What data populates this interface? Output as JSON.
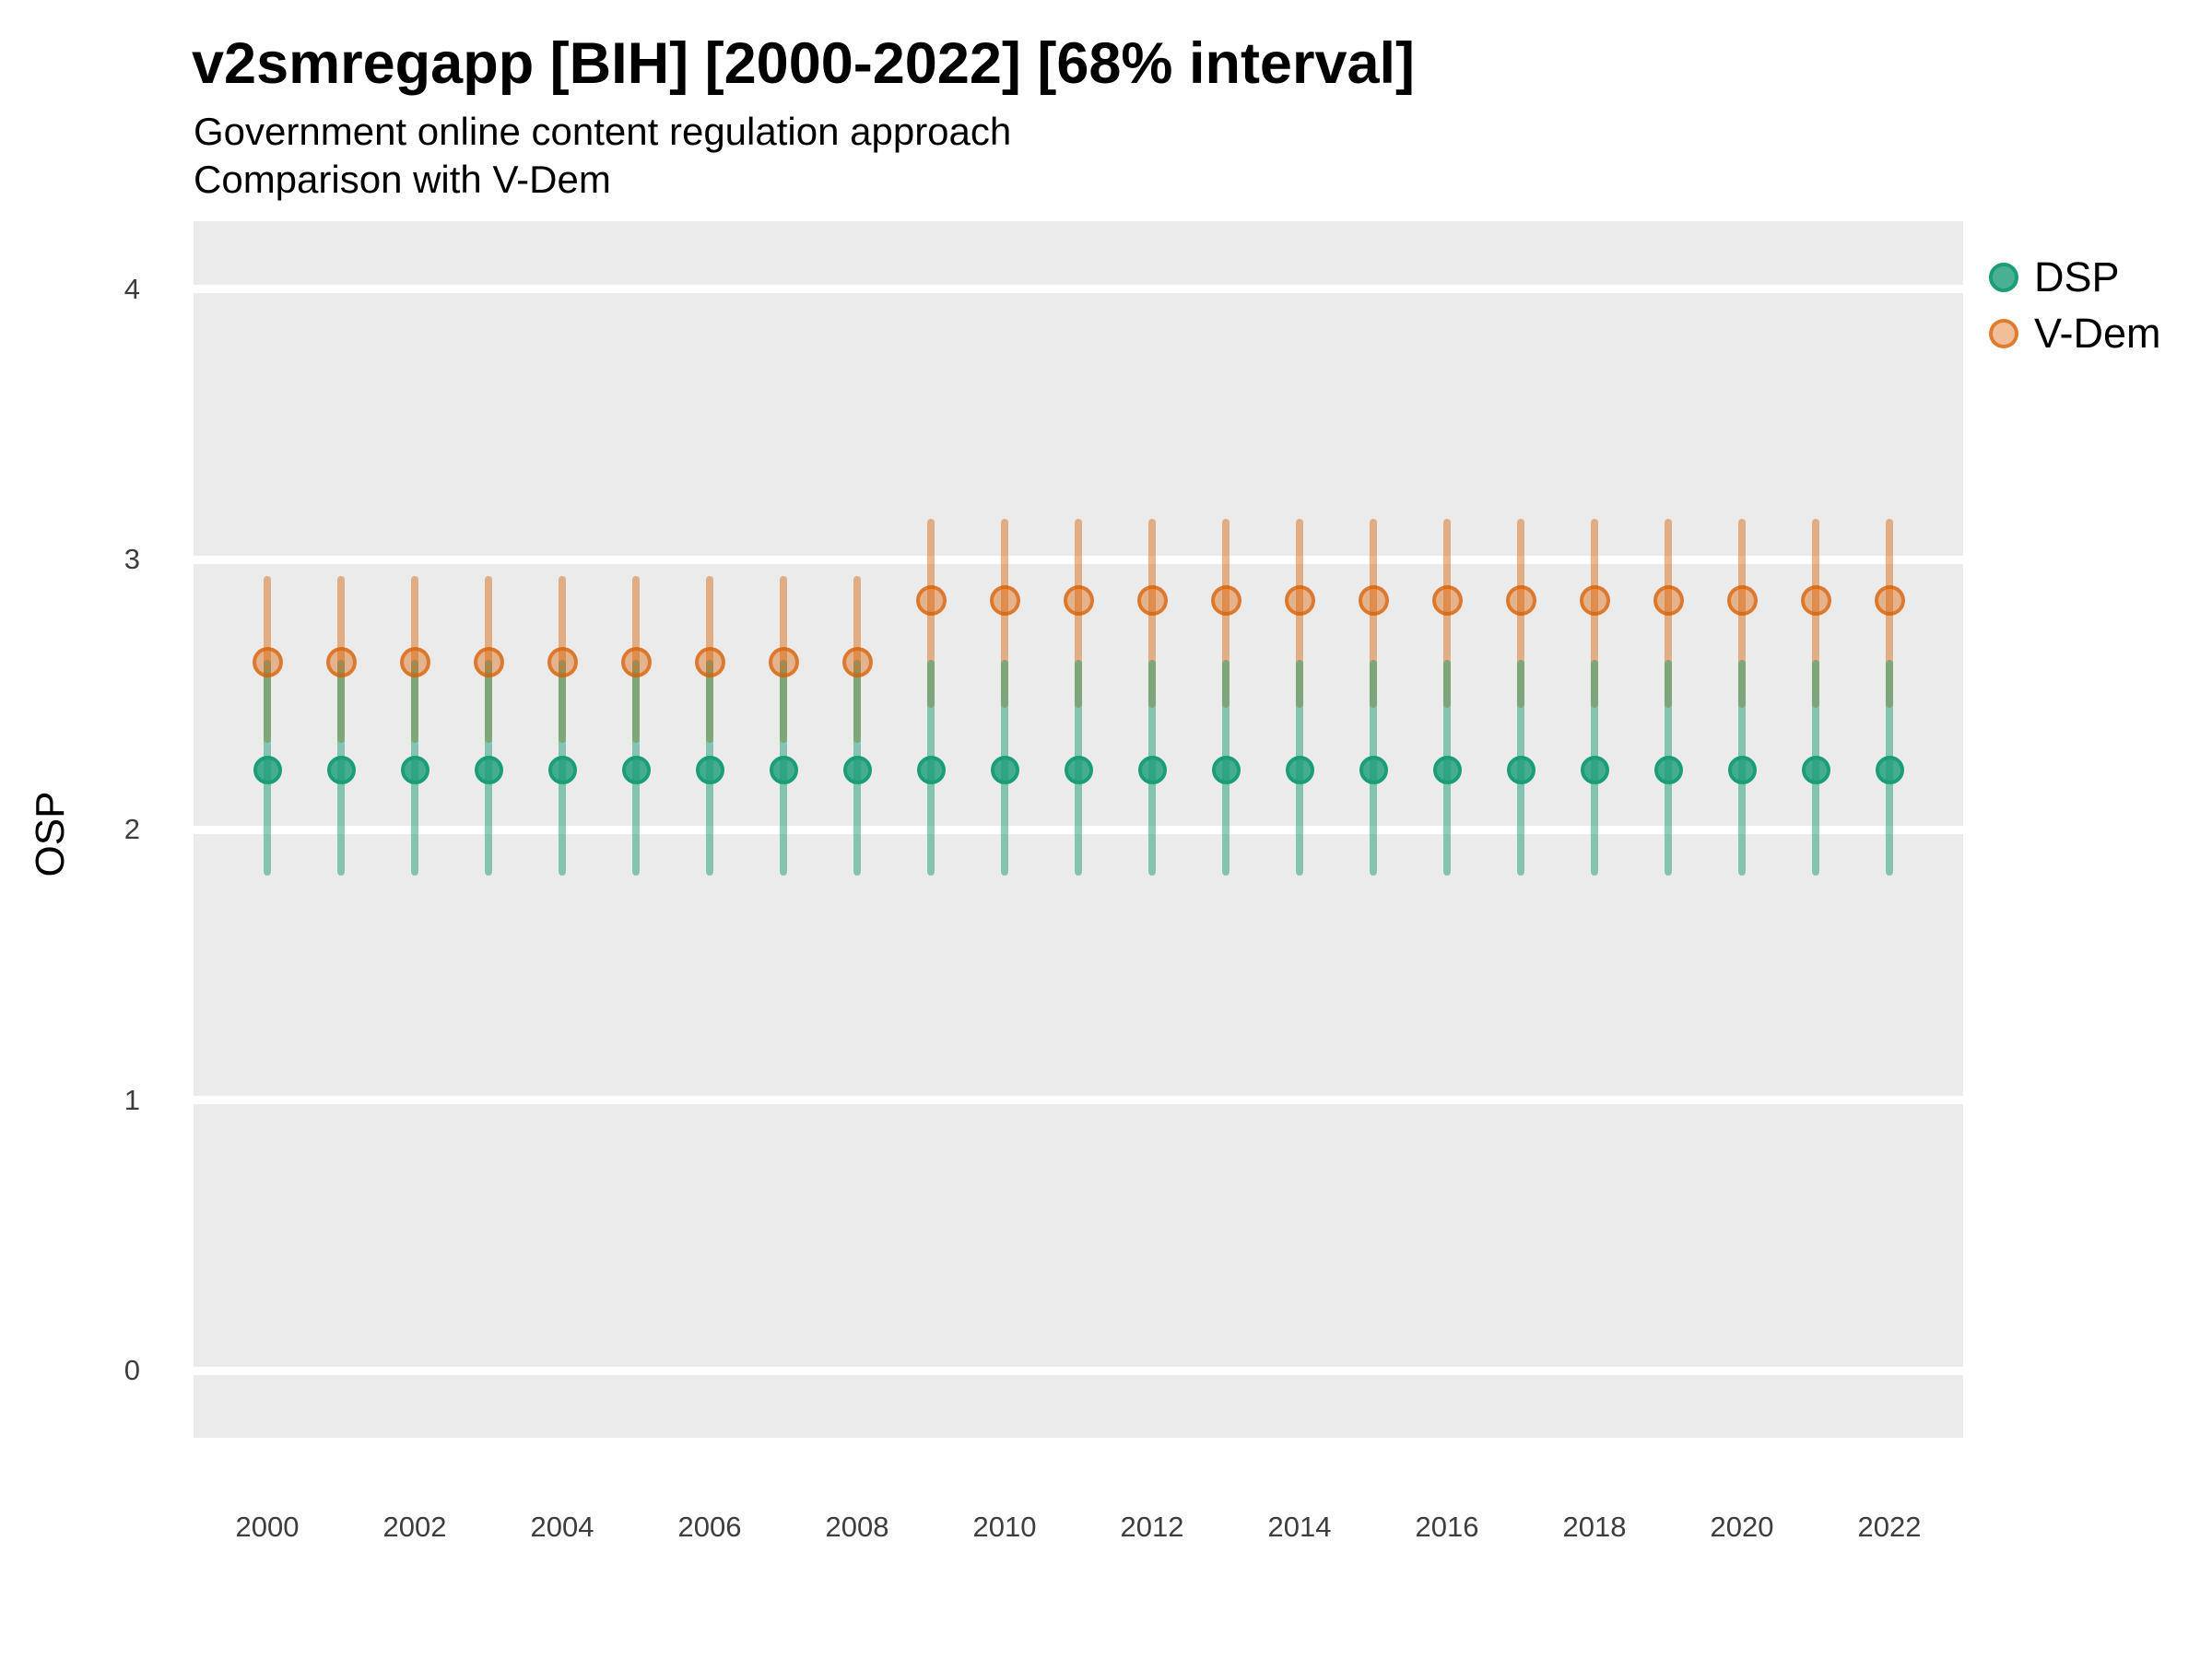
{
  "title": "v2smregapp [BIH] [2000-2022] [68% interval]",
  "subtitle_line1": "Government online content regulation approach",
  "subtitle_line2": "Comparison with V-Dem",
  "axes": {
    "y_label": "OSP",
    "y_ticks": [
      4,
      3,
      2,
      1,
      0
    ],
    "x_ticks": [
      2000,
      2002,
      2004,
      2006,
      2008,
      2010,
      2012,
      2014,
      2016,
      2018,
      2020,
      2022
    ]
  },
  "legend": {
    "items": [
      {
        "label": "DSP",
        "color": "#1B9E77"
      },
      {
        "label": "V-Dem",
        "color": "#D95F02"
      }
    ]
  },
  "colors": {
    "panel_background": "#EBEBEB",
    "gridline": "#FFFFFF",
    "dsp": "#1B9E77",
    "vdem": "#D95F02"
  },
  "chart_data": {
    "type": "scatter",
    "title": "v2smregapp [BIH] [2000-2022] [68% interval]",
    "subtitle": [
      "Government online content regulation approach",
      "Comparison with V-Dem"
    ],
    "xlabel": "",
    "ylabel": "OSP",
    "ylim": [
      0,
      4
    ],
    "interval": "68%",
    "grid": "major-horizontal-only",
    "legend_position": "right-top",
    "x": [
      2000,
      2001,
      2002,
      2003,
      2004,
      2005,
      2006,
      2007,
      2008,
      2009,
      2010,
      2011,
      2012,
      2013,
      2014,
      2015,
      2016,
      2017,
      2018,
      2019,
      2020,
      2021,
      2022
    ],
    "series": [
      {
        "name": "DSP",
        "color": "#1B9E77",
        "values": [
          2.22,
          2.22,
          2.22,
          2.22,
          2.22,
          2.22,
          2.22,
          2.22,
          2.22,
          2.22,
          2.22,
          2.22,
          2.22,
          2.22,
          2.22,
          2.22,
          2.22,
          2.22,
          2.22,
          2.22,
          2.22,
          2.22,
          2.22
        ],
        "lower": [
          1.83,
          1.83,
          1.83,
          1.83,
          1.83,
          1.83,
          1.83,
          1.83,
          1.83,
          1.83,
          1.83,
          1.83,
          1.83,
          1.83,
          1.83,
          1.83,
          1.83,
          1.83,
          1.83,
          1.83,
          1.83,
          1.83,
          1.83
        ],
        "upper": [
          2.63,
          2.63,
          2.63,
          2.63,
          2.63,
          2.63,
          2.63,
          2.63,
          2.63,
          2.63,
          2.63,
          2.63,
          2.63,
          2.63,
          2.63,
          2.63,
          2.63,
          2.63,
          2.63,
          2.63,
          2.63,
          2.63,
          2.63
        ]
      },
      {
        "name": "V-Dem",
        "color": "#D95F02",
        "values": [
          2.62,
          2.62,
          2.62,
          2.62,
          2.62,
          2.62,
          2.62,
          2.62,
          2.62,
          2.85,
          2.85,
          2.85,
          2.85,
          2.85,
          2.85,
          2.85,
          2.85,
          2.85,
          2.85,
          2.85,
          2.85,
          2.85,
          2.85
        ],
        "lower": [
          2.32,
          2.32,
          2.32,
          2.32,
          2.32,
          2.32,
          2.32,
          2.32,
          2.32,
          2.45,
          2.45,
          2.45,
          2.45,
          2.45,
          2.45,
          2.45,
          2.45,
          2.45,
          2.45,
          2.45,
          2.45,
          2.45,
          2.45
        ],
        "upper": [
          2.94,
          2.94,
          2.94,
          2.94,
          2.94,
          2.94,
          2.94,
          2.94,
          2.94,
          3.15,
          3.15,
          3.15,
          3.15,
          3.15,
          3.15,
          3.15,
          3.15,
          3.15,
          3.15,
          3.15,
          3.15,
          3.15,
          3.15
        ]
      }
    ]
  }
}
